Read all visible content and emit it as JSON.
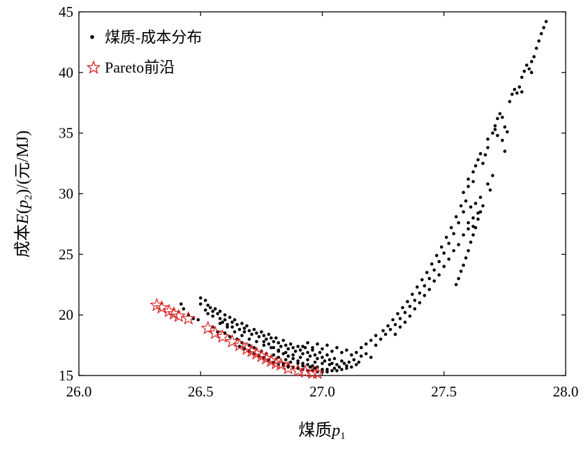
{
  "chart_data": {
    "type": "scatter",
    "title": "",
    "xlabel": "煤质p1",
    "ylabel": "成本E(p2)/(元/MJ)",
    "xlim": [
      26.0,
      28.0
    ],
    "ylim": [
      15,
      45
    ],
    "x_ticks": [
      "26.0",
      "26.5",
      "27.0",
      "27.5",
      "28.0"
    ],
    "y_ticks": [
      "15",
      "20",
      "25",
      "30",
      "35",
      "40",
      "45"
    ],
    "grid": false,
    "legend_position": "top-left",
    "series": [
      {
        "name": "煤质-成本分布",
        "marker": "dot",
        "color": "#000000",
        "points": [
          [
            26.42,
            20.9
          ],
          [
            26.43,
            20.5
          ],
          [
            26.45,
            20.0
          ],
          [
            26.47,
            19.7
          ],
          [
            26.49,
            19.6
          ],
          [
            26.5,
            21.4
          ],
          [
            26.52,
            21.2
          ],
          [
            26.5,
            20.9
          ],
          [
            26.52,
            20.4
          ],
          [
            26.53,
            20.8
          ],
          [
            26.53,
            20.1
          ],
          [
            26.54,
            20.6
          ],
          [
            26.55,
            20.3
          ],
          [
            26.55,
            19.9
          ],
          [
            26.56,
            20.5
          ],
          [
            26.57,
            20.1
          ],
          [
            26.58,
            19.7
          ],
          [
            26.58,
            20.3
          ],
          [
            26.59,
            19.4
          ],
          [
            26.6,
            20.0
          ],
          [
            26.6,
            19.6
          ],
          [
            26.61,
            19.2
          ],
          [
            26.62,
            19.8
          ],
          [
            26.63,
            19.4
          ],
          [
            26.63,
            19.0
          ],
          [
            26.64,
            19.6
          ],
          [
            26.65,
            19.2
          ],
          [
            26.66,
            18.8
          ],
          [
            26.67,
            19.3
          ],
          [
            26.68,
            18.9
          ],
          [
            26.68,
            18.6
          ],
          [
            26.69,
            19.1
          ],
          [
            26.7,
            18.7
          ],
          [
            26.71,
            18.4
          ],
          [
            26.72,
            18.8
          ],
          [
            26.73,
            18.5
          ],
          [
            26.74,
            18.2
          ],
          [
            26.75,
            18.6
          ],
          [
            26.76,
            18.3
          ],
          [
            26.77,
            18.0
          ],
          [
            26.78,
            18.4
          ],
          [
            26.79,
            18.1
          ],
          [
            26.8,
            17.8
          ],
          [
            26.81,
            18.1
          ],
          [
            26.82,
            17.7
          ],
          [
            26.83,
            17.4
          ],
          [
            26.84,
            17.9
          ],
          [
            26.85,
            17.5
          ],
          [
            26.86,
            17.2
          ],
          [
            26.87,
            17.6
          ],
          [
            26.88,
            17.3
          ],
          [
            26.89,
            17.0
          ],
          [
            26.9,
            17.4
          ],
          [
            26.91,
            17.1
          ],
          [
            26.92,
            16.8
          ],
          [
            26.93,
            17.3
          ],
          [
            26.94,
            16.9
          ],
          [
            26.95,
            16.6
          ],
          [
            26.96,
            17.1
          ],
          [
            26.97,
            16.7
          ],
          [
            26.98,
            16.4
          ],
          [
            26.99,
            16.9
          ],
          [
            27.0,
            16.5
          ],
          [
            27.01,
            16.2
          ],
          [
            27.02,
            16.7
          ],
          [
            27.03,
            16.3
          ],
          [
            27.04,
            16.0
          ],
          [
            26.55,
            19.0
          ],
          [
            26.57,
            18.6
          ],
          [
            26.6,
            18.5
          ],
          [
            26.62,
            18.2
          ],
          [
            26.65,
            18.0
          ],
          [
            26.67,
            17.7
          ],
          [
            26.7,
            17.5
          ],
          [
            26.72,
            17.3
          ],
          [
            26.75,
            17.0
          ],
          [
            26.77,
            16.8
          ],
          [
            26.8,
            16.7
          ],
          [
            26.82,
            16.5
          ],
          [
            26.85,
            16.3
          ],
          [
            26.87,
            16.1
          ],
          [
            26.9,
            16.0
          ],
          [
            26.92,
            15.8
          ],
          [
            26.95,
            15.7
          ],
          [
            26.97,
            15.6
          ],
          [
            27.0,
            15.5
          ],
          [
            27.02,
            15.5
          ],
          [
            27.05,
            15.6
          ],
          [
            27.07,
            15.7
          ],
          [
            27.1,
            15.8
          ],
          [
            26.58,
            19.3
          ],
          [
            26.61,
            19.0
          ],
          [
            26.64,
            18.6
          ],
          [
            26.67,
            18.3
          ],
          [
            26.7,
            18.0
          ],
          [
            26.73,
            17.8
          ],
          [
            26.76,
            17.5
          ],
          [
            26.79,
            17.3
          ],
          [
            26.82,
            17.1
          ],
          [
            26.85,
            16.9
          ],
          [
            26.88,
            16.7
          ],
          [
            26.91,
            16.5
          ],
          [
            26.94,
            16.3
          ],
          [
            26.97,
            16.1
          ],
          [
            27.0,
            16.0
          ],
          [
            27.03,
            15.9
          ],
          [
            27.06,
            15.9
          ],
          [
            27.09,
            16.0
          ],
          [
            26.84,
            16.0
          ],
          [
            26.86,
            15.8
          ],
          [
            26.88,
            15.7
          ],
          [
            26.9,
            15.6
          ],
          [
            26.92,
            15.5
          ],
          [
            26.94,
            15.4
          ],
          [
            26.96,
            15.4
          ],
          [
            26.98,
            15.3
          ],
          [
            27.0,
            15.3
          ],
          [
            27.02,
            15.3
          ],
          [
            27.04,
            15.4
          ],
          [
            27.06,
            15.4
          ],
          [
            27.08,
            15.5
          ],
          [
            27.1,
            15.6
          ],
          [
            27.12,
            15.7
          ],
          [
            27.14,
            15.9
          ],
          [
            26.92,
            17.4
          ],
          [
            26.94,
            17.7
          ],
          [
            26.96,
            17.3
          ],
          [
            26.98,
            17.6
          ],
          [
            27.0,
            17.2
          ],
          [
            27.02,
            17.5
          ],
          [
            27.04,
            17.0
          ],
          [
            27.06,
            17.3
          ],
          [
            27.08,
            16.9
          ],
          [
            27.1,
            17.1
          ],
          [
            27.12,
            16.7
          ],
          [
            27.14,
            16.9
          ],
          [
            27.16,
            16.6
          ],
          [
            27.18,
            16.8
          ],
          [
            27.2,
            16.5
          ],
          [
            27.05,
            16.4
          ],
          [
            27.08,
            16.2
          ],
          [
            27.11,
            16.1
          ],
          [
            27.13,
            16.3
          ],
          [
            27.15,
            16.1
          ],
          [
            27.16,
            17.3
          ],
          [
            27.18,
            17.6
          ],
          [
            27.2,
            17.9
          ],
          [
            27.22,
            17.5
          ],
          [
            27.22,
            18.3
          ],
          [
            27.24,
            18.0
          ],
          [
            27.25,
            18.7
          ],
          [
            27.26,
            18.4
          ],
          [
            27.27,
            19.1
          ],
          [
            27.28,
            18.8
          ],
          [
            27.29,
            19.6
          ],
          [
            27.3,
            19.2
          ],
          [
            27.31,
            20.1
          ],
          [
            27.32,
            19.7
          ],
          [
            27.33,
            20.6
          ],
          [
            27.34,
            20.2
          ],
          [
            27.35,
            21.1
          ],
          [
            27.36,
            20.7
          ],
          [
            27.37,
            21.7
          ],
          [
            27.38,
            21.2
          ],
          [
            27.39,
            22.3
          ],
          [
            27.4,
            21.8
          ],
          [
            27.41,
            22.9
          ],
          [
            27.42,
            22.4
          ],
          [
            27.43,
            23.5
          ],
          [
            27.44,
            23.0
          ],
          [
            27.45,
            24.2
          ],
          [
            27.46,
            23.7
          ],
          [
            27.47,
            24.9
          ],
          [
            27.48,
            24.4
          ],
          [
            27.49,
            25.6
          ],
          [
            27.5,
            25.1
          ],
          [
            27.51,
            26.4
          ],
          [
            27.52,
            25.9
          ],
          [
            27.53,
            27.2
          ],
          [
            27.54,
            26.7
          ],
          [
            27.55,
            28.1
          ],
          [
            27.56,
            27.6
          ],
          [
            27.57,
            29.0
          ],
          [
            27.58,
            28.5
          ],
          [
            27.59,
            29.4
          ],
          [
            27.6,
            27.6
          ],
          [
            27.61,
            28.9
          ],
          [
            27.62,
            27.3
          ],
          [
            27.63,
            29.2
          ],
          [
            27.64,
            28.4
          ],
          [
            27.65,
            29.7
          ],
          [
            27.66,
            29.0
          ],
          [
            27.3,
            18.4
          ],
          [
            27.32,
            19.0
          ],
          [
            27.34,
            19.4
          ],
          [
            27.36,
            19.9
          ],
          [
            27.38,
            20.5
          ],
          [
            27.4,
            21.0
          ],
          [
            27.42,
            21.6
          ],
          [
            27.44,
            22.1
          ],
          [
            27.46,
            22.8
          ],
          [
            27.48,
            23.3
          ],
          [
            27.5,
            24.0
          ],
          [
            27.52,
            24.6
          ],
          [
            27.54,
            25.3
          ],
          [
            27.56,
            25.8
          ],
          [
            27.58,
            26.6
          ],
          [
            27.6,
            27.1
          ],
          [
            27.62,
            28.0
          ],
          [
            27.55,
            22.5
          ],
          [
            27.56,
            23.0
          ],
          [
            27.57,
            23.6
          ],
          [
            27.58,
            24.1
          ],
          [
            27.59,
            24.7
          ],
          [
            27.6,
            25.3
          ],
          [
            27.61,
            26.0
          ],
          [
            27.62,
            26.6
          ],
          [
            27.63,
            27.2
          ],
          [
            27.64,
            27.9
          ],
          [
            27.65,
            28.5
          ],
          [
            27.58,
            30.1
          ],
          [
            27.6,
            30.6
          ],
          [
            27.6,
            31.2
          ],
          [
            27.62,
            31.0
          ],
          [
            27.62,
            31.8
          ],
          [
            27.63,
            32.3
          ],
          [
            27.64,
            32.8
          ],
          [
            27.65,
            33.3
          ],
          [
            27.66,
            32.5
          ],
          [
            27.67,
            33.2
          ],
          [
            27.68,
            30.8
          ],
          [
            27.68,
            33.8
          ],
          [
            27.69,
            30.3
          ],
          [
            27.7,
            31.5
          ],
          [
            27.68,
            34.5
          ],
          [
            27.7,
            35.0
          ],
          [
            27.71,
            35.6
          ],
          [
            27.72,
            36.2
          ],
          [
            27.73,
            36.6
          ],
          [
            27.74,
            36.3
          ],
          [
            27.75,
            35.5
          ],
          [
            27.76,
            35.1
          ],
          [
            27.74,
            34.4
          ],
          [
            27.75,
            33.5
          ],
          [
            27.72,
            34.8
          ],
          [
            27.71,
            35.3
          ],
          [
            27.77,
            37.6
          ],
          [
            27.78,
            38.2
          ],
          [
            27.79,
            38.6
          ],
          [
            27.8,
            38.3
          ],
          [
            27.81,
            38.8
          ],
          [
            27.82,
            39.6
          ],
          [
            27.83,
            40.1
          ],
          [
            27.84,
            40.6
          ],
          [
            27.85,
            40.3
          ],
          [
            27.86,
            40.9
          ],
          [
            27.87,
            41.3
          ],
          [
            27.88,
            42.0
          ],
          [
            27.89,
            42.6
          ],
          [
            27.9,
            43.2
          ],
          [
            27.91,
            43.7
          ],
          [
            27.92,
            44.2
          ],
          [
            27.82,
            38.4
          ],
          [
            27.86,
            40.0
          ],
          [
            26.76,
            17.8
          ],
          [
            26.78,
            17.6
          ],
          [
            26.8,
            17.3
          ],
          [
            26.82,
            17.0
          ],
          [
            26.84,
            16.8
          ],
          [
            26.86,
            16.6
          ],
          [
            26.88,
            16.4
          ],
          [
            26.9,
            16.2
          ],
          [
            26.92,
            16.0
          ],
          [
            26.94,
            15.9
          ],
          [
            26.96,
            15.8
          ],
          [
            26.98,
            15.7
          ],
          [
            26.66,
            17.4
          ],
          [
            26.68,
            17.2
          ],
          [
            26.7,
            17.0
          ],
          [
            26.72,
            16.8
          ],
          [
            26.74,
            16.6
          ],
          [
            26.76,
            16.5
          ],
          [
            26.78,
            16.3
          ],
          [
            26.8,
            16.1
          ],
          [
            26.82,
            15.9
          ],
          [
            26.84,
            15.8
          ],
          [
            26.86,
            15.7
          ]
        ]
      },
      {
        "name": "Pareto前沿",
        "marker": "star",
        "color": "#d42020",
        "points": [
          [
            26.32,
            20.8
          ],
          [
            26.34,
            20.6
          ],
          [
            26.37,
            20.3
          ],
          [
            26.39,
            20.1
          ],
          [
            26.41,
            19.9
          ],
          [
            26.45,
            19.7
          ],
          [
            26.53,
            18.9
          ],
          [
            26.56,
            18.5
          ],
          [
            26.59,
            18.2
          ],
          [
            26.63,
            17.8
          ],
          [
            26.66,
            17.5
          ],
          [
            26.69,
            17.2
          ],
          [
            26.71,
            17.0
          ],
          [
            26.73,
            16.8
          ],
          [
            26.75,
            16.6
          ],
          [
            26.77,
            16.4
          ],
          [
            26.79,
            16.2
          ],
          [
            26.81,
            16.0
          ],
          [
            26.83,
            15.9
          ],
          [
            26.86,
            15.6
          ],
          [
            26.9,
            15.4
          ],
          [
            26.93,
            15.3
          ],
          [
            26.96,
            15.2
          ],
          [
            26.98,
            15.2
          ]
        ]
      }
    ]
  }
}
